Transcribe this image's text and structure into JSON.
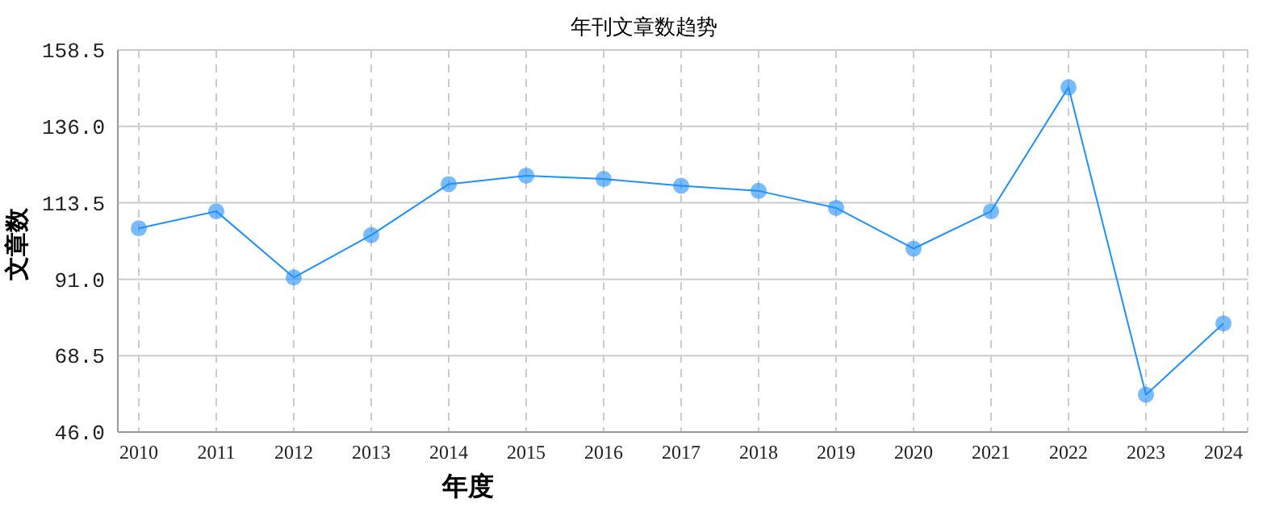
{
  "chart_data": {
    "type": "line",
    "title": "年刊文章数趋势",
    "xlabel": "年度",
    "ylabel": "文章数",
    "categories": [
      "2010",
      "2011",
      "2012",
      "2013",
      "2014",
      "2015",
      "2016",
      "2017",
      "2018",
      "2019",
      "2020",
      "2021",
      "2022",
      "2023",
      "2024"
    ],
    "series": [
      {
        "color": "#1e90ff",
        "values": [
          106,
          111,
          91.5,
          104,
          119,
          121.5,
          120.5,
          118.5,
          117,
          112,
          100,
          111,
          147.5,
          57,
          78
        ]
      }
    ],
    "ylim": [
      46,
      158.5
    ],
    "yticks": [
      {
        "value": 46,
        "label": "46.0"
      },
      {
        "value": 68.5,
        "label": "68.5"
      },
      {
        "value": 91,
        "label": "91.0"
      },
      {
        "value": 113.5,
        "label": "113.5"
      },
      {
        "value": 136,
        "label": "136.0"
      },
      {
        "value": 158.5,
        "label": "158.5"
      }
    ],
    "grid": true,
    "marker": "circle",
    "line_style": "solid"
  }
}
